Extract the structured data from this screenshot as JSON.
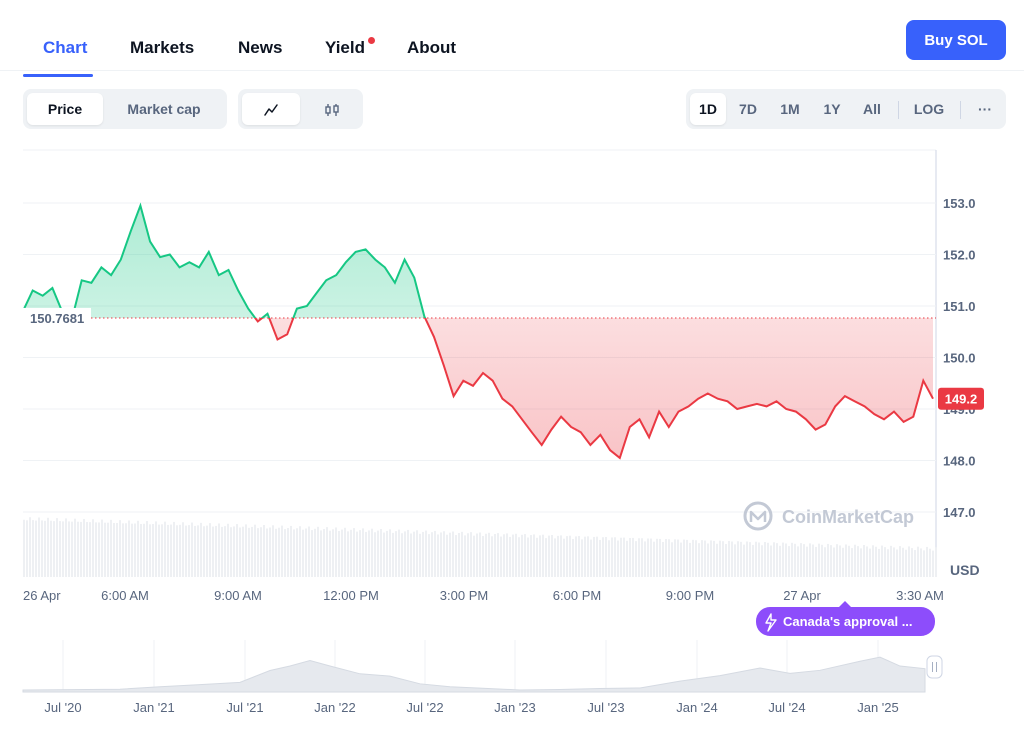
{
  "tabs": [
    {
      "label": "Chart",
      "active": true
    },
    {
      "label": "Markets"
    },
    {
      "label": "News"
    },
    {
      "label": "Yield",
      "has_dot": true
    },
    {
      "label": "About"
    }
  ],
  "buy_button": "Buy SOL",
  "metric_toggle": [
    "Price",
    "Market cap"
  ],
  "chart_type_toggle": {
    "line_icon": "line-chart-icon",
    "candle_icon": "candlestick-icon"
  },
  "ranges": [
    "1D",
    "7D",
    "1M",
    "1Y",
    "All"
  ],
  "log_label": "LOG",
  "more_label": "···",
  "watermark": "CoinMarketCap",
  "news_tag": "Canada's approval ...",
  "colors": {
    "up": "#16c784",
    "down": "#ea3943",
    "accent": "#3861fb",
    "purple": "#8d4dfb"
  },
  "chart_data": {
    "type": "line",
    "reference_price": 150.7681,
    "reference_label": "150.7681",
    "current_price_label": "149.2",
    "ylabel": "USD",
    "ylim": [
      146.2,
      153.8
    ],
    "yticks": [
      "153.0",
      "152.0",
      "151.0",
      "150.0",
      "149.0",
      "148.0",
      "147.0"
    ],
    "xticks": [
      "26 Apr",
      "6:00 AM",
      "9:00 AM",
      "12:00 PM",
      "3:00 PM",
      "6:00 PM",
      "9:00 PM",
      "27 Apr",
      "3:30 AM"
    ],
    "price": [
      [
        0,
        150.9
      ],
      [
        0.33,
        151.3
      ],
      [
        0.67,
        151.2
      ],
      [
        1.0,
        151.35
      ],
      [
        1.33,
        150.9
      ],
      [
        1.67,
        150.75
      ],
      [
        2.0,
        151.5
      ],
      [
        2.33,
        151.45
      ],
      [
        2.67,
        151.75
      ],
      [
        3.0,
        151.6
      ],
      [
        3.33,
        151.9
      ],
      [
        3.67,
        152.45
      ],
      [
        4.0,
        152.95
      ],
      [
        4.33,
        152.25
      ],
      [
        4.67,
        151.95
      ],
      [
        5.0,
        152.0
      ],
      [
        5.33,
        151.75
      ],
      [
        5.67,
        151.85
      ],
      [
        6.0,
        151.75
      ],
      [
        6.33,
        152.05
      ],
      [
        6.67,
        151.6
      ],
      [
        7.0,
        151.7
      ],
      [
        7.33,
        151.3
      ],
      [
        7.67,
        150.95
      ],
      [
        8.0,
        150.7
      ],
      [
        8.33,
        150.85
      ],
      [
        8.67,
        150.35
      ],
      [
        9.0,
        150.45
      ],
      [
        9.33,
        150.95
      ],
      [
        9.67,
        151.0
      ],
      [
        10.0,
        151.25
      ],
      [
        10.33,
        151.5
      ],
      [
        10.67,
        151.6
      ],
      [
        11.0,
        151.85
      ],
      [
        11.33,
        152.05
      ],
      [
        11.67,
        152.1
      ],
      [
        12.0,
        151.9
      ],
      [
        12.33,
        151.75
      ],
      [
        12.67,
        151.45
      ],
      [
        13.0,
        151.9
      ],
      [
        13.33,
        151.55
      ],
      [
        13.67,
        150.8
      ],
      [
        14.0,
        150.4
      ],
      [
        14.33,
        149.85
      ],
      [
        14.67,
        149.25
      ],
      [
        15.0,
        149.55
      ],
      [
        15.33,
        149.45
      ],
      [
        15.67,
        149.7
      ],
      [
        16.0,
        149.55
      ],
      [
        16.33,
        149.2
      ],
      [
        16.67,
        149.05
      ],
      [
        17.0,
        148.8
      ],
      [
        17.33,
        148.55
      ],
      [
        17.67,
        148.3
      ],
      [
        18.0,
        148.6
      ],
      [
        18.33,
        148.85
      ],
      [
        18.67,
        148.65
      ],
      [
        19.0,
        148.55
      ],
      [
        19.33,
        148.3
      ],
      [
        19.67,
        148.5
      ],
      [
        20.0,
        148.2
      ],
      [
        20.33,
        148.05
      ],
      [
        20.67,
        148.65
      ],
      [
        21.0,
        148.8
      ],
      [
        21.33,
        148.45
      ],
      [
        21.67,
        148.95
      ],
      [
        22.0,
        148.65
      ],
      [
        22.33,
        148.95
      ],
      [
        22.67,
        149.05
      ],
      [
        23.0,
        149.2
      ],
      [
        23.33,
        149.3
      ],
      [
        23.67,
        149.2
      ],
      [
        24.0,
        149.15
      ],
      [
        24.33,
        149.0
      ],
      [
        24.67,
        149.05
      ],
      [
        25.0,
        149.1
      ],
      [
        25.33,
        149.05
      ],
      [
        25.67,
        149.15
      ],
      [
        26.0,
        149.0
      ],
      [
        26.33,
        148.95
      ],
      [
        26.67,
        148.8
      ],
      [
        27.0,
        148.6
      ],
      [
        27.33,
        148.7
      ],
      [
        27.67,
        149.05
      ],
      [
        28.0,
        149.25
      ],
      [
        28.33,
        149.15
      ],
      [
        28.67,
        149.05
      ],
      [
        29.0,
        148.9
      ],
      [
        29.33,
        148.8
      ],
      [
        29.67,
        148.95
      ],
      [
        30.0,
        148.75
      ],
      [
        30.33,
        148.85
      ],
      [
        30.67,
        149.55
      ],
      [
        31.0,
        149.2
      ]
    ],
    "overview": {
      "xticks": [
        "Jul '20",
        "Jan '21",
        "Jul '21",
        "Jan '22",
        "Jul '22",
        "Jan '23",
        "Jul '23",
        "Jan '24",
        "Jul '24",
        "Jan '25"
      ]
    }
  }
}
